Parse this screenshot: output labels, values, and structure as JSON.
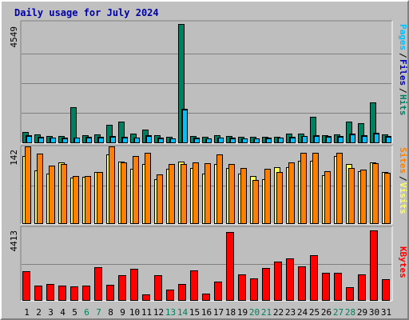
{
  "title": "Daily usage for July 2024",
  "colors": {
    "background": "#c0c0c0",
    "panel": "#bebebe",
    "hits": "#008060",
    "files": "#00a0e8",
    "pages": "#00c0ff",
    "visits": "#ffff60",
    "sites": "#ff8000",
    "kbytes": "#ff0000",
    "weekend_label": "#00805c",
    "title": "#0000a8"
  },
  "chart_data": [
    {
      "type": "bar",
      "panel": "hits-files-pages",
      "y_scale_label": "4549",
      "ylim": [
        0,
        4549
      ],
      "grid": true,
      "legend": [
        {
          "text": "Pages",
          "color": "#00c0ff"
        },
        {
          "text": "Files",
          "color": "#0000c0"
        },
        {
          "text": "Hits",
          "color": "#008060"
        }
      ],
      "categories": [
        "1",
        "2",
        "3",
        "4",
        "5",
        "6",
        "7",
        "8",
        "9",
        "10",
        "11",
        "12",
        "13",
        "14",
        "15",
        "16",
        "17",
        "18",
        "19",
        "20",
        "21",
        "22",
        "23",
        "24",
        "25",
        "26",
        "27",
        "28",
        "29",
        "30",
        "31"
      ],
      "series": [
        {
          "name": "Hits",
          "values": [
            395,
            305,
            245,
            235,
            1365,
            275,
            305,
            665,
            785,
            335,
            485,
            275,
            215,
            4549,
            235,
            215,
            275,
            235,
            215,
            205,
            215,
            215,
            335,
            335,
            975,
            275,
            305,
            785,
            725,
            1545,
            305
          ]
        },
        {
          "name": "Files",
          "values": [
            275,
            215,
            185,
            175,
            185,
            205,
            205,
            235,
            215,
            195,
            275,
            175,
            155,
            1305,
            175,
            155,
            185,
            175,
            155,
            155,
            175,
            185,
            205,
            255,
            275,
            235,
            235,
            335,
            275,
            365,
            245
          ]
        },
        {
          "name": "Pages",
          "values": [
            255,
            195,
            175,
            165,
            175,
            185,
            195,
            215,
            195,
            185,
            255,
            165,
            145,
            1245,
            165,
            145,
            175,
            165,
            145,
            145,
            165,
            175,
            195,
            235,
            255,
            215,
            215,
            315,
            255,
            345,
            225
          ]
        }
      ]
    },
    {
      "type": "bar",
      "panel": "visits-sites",
      "y_scale_label": "142",
      "ylim": [
        0,
        142
      ],
      "grid": true,
      "legend": [
        {
          "text": "Sites",
          "color": "#ff8000"
        },
        {
          "text": "Visits",
          "color": "#ffff60"
        }
      ],
      "categories": [
        "1",
        "2",
        "3",
        "4",
        "5",
        "6",
        "7",
        "8",
        "9",
        "10",
        "11",
        "12",
        "13",
        "14",
        "15",
        "16",
        "17",
        "18",
        "19",
        "20",
        "21",
        "22",
        "23",
        "24",
        "25",
        "26",
        "27",
        "28",
        "29",
        "30",
        "31"
      ],
      "series": [
        {
          "name": "Visits",
          "values": [
            125,
            98,
            92,
            113,
            85,
            86,
            96,
            128,
            115,
            102,
            110,
            82,
            101,
            115,
            103,
            93,
            111,
            103,
            92,
            88,
            82,
            105,
            104,
            117,
            116,
            90,
            125,
            111,
            97,
            113,
            96
          ]
        },
        {
          "name": "Sites",
          "values": [
            144,
            130,
            107,
            110,
            88,
            88,
            95,
            143,
            114,
            125,
            131,
            91,
            111,
            110,
            113,
            112,
            129,
            110,
            103,
            80,
            102,
            95,
            114,
            132,
            132,
            97,
            131,
            103,
            100,
            112,
            94
          ]
        }
      ]
    },
    {
      "type": "bar",
      "panel": "kbytes",
      "y_scale_label": "4413",
      "ylim": [
        0,
        4413
      ],
      "grid": true,
      "legend": [
        {
          "text": "KBytes",
          "color": "#ff0000"
        }
      ],
      "categories": [
        "1",
        "2",
        "3",
        "4",
        "5",
        "6",
        "7",
        "8",
        "9",
        "10",
        "11",
        "12",
        "13",
        "14",
        "15",
        "16",
        "17",
        "18",
        "19",
        "20",
        "21",
        "22",
        "23",
        "24",
        "25",
        "26",
        "27",
        "28",
        "29",
        "30",
        "31"
      ],
      "series": [
        {
          "name": "KBytes",
          "values": [
            1750,
            875,
            1000,
            905,
            845,
            905,
            1990,
            935,
            1515,
            1890,
            345,
            1540,
            660,
            965,
            1800,
            395,
            1115,
            4180,
            1575,
            1325,
            1945,
            2340,
            2565,
            2050,
            2725,
            1665,
            1665,
            780,
            1590,
            4265,
            1260
          ]
        }
      ]
    }
  ],
  "x_axis": {
    "days": [
      "1",
      "2",
      "3",
      "4",
      "5",
      "6",
      "7",
      "8",
      "9",
      "10",
      "11",
      "12",
      "13",
      "14",
      "15",
      "16",
      "17",
      "18",
      "19",
      "20",
      "21",
      "22",
      "23",
      "24",
      "25",
      "26",
      "27",
      "28",
      "29",
      "30",
      "31"
    ],
    "weekend_days": [
      "6",
      "7",
      "13",
      "14",
      "20",
      "21",
      "27",
      "28"
    ]
  }
}
